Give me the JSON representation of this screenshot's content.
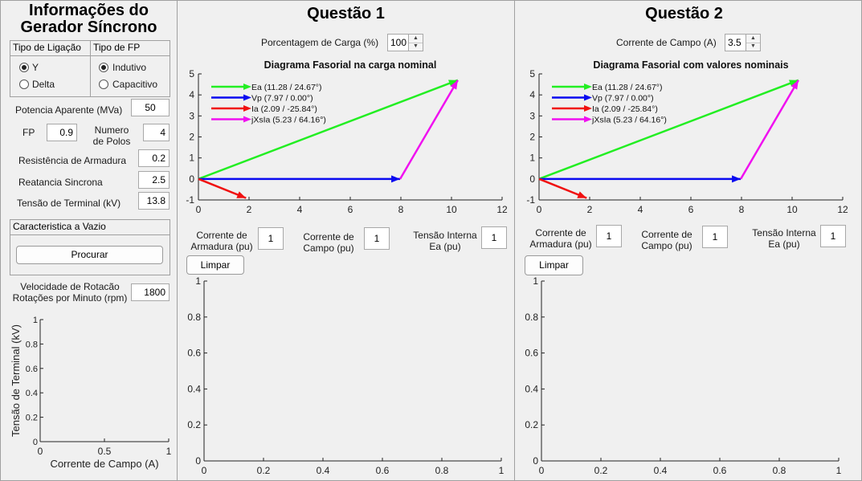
{
  "left": {
    "title_line1": "Informações do",
    "title_line2": "Gerador Síncrono",
    "ligacao": {
      "title": "Tipo de Ligação",
      "options": [
        "Y",
        "Delta"
      ],
      "selected": 0
    },
    "fp_type": {
      "title": "Tipo de FP",
      "options": [
        "Indutivo",
        "Capacitivo"
      ],
      "selected": 0
    },
    "potencia_label": "Potencia Aparente (MVa)",
    "potencia_value": "50",
    "fp_label": "FP",
    "fp_value": "0.9",
    "polos_label_1": "Numero",
    "polos_label_2": "de Polos",
    "polos_value": "4",
    "resistencia_label": "Resistência de Armadura",
    "resistencia_value": "0.2",
    "reatancia_label": "Reatancia Sincrona",
    "reatancia_value": "2.5",
    "tensao_label": "Tensão de Terminal (kV)",
    "tensao_value": "13.8",
    "vazio_title": "Caracteristica a Vazio",
    "procurar_label": "Procurar",
    "velocidade_label_1": "Velocidade de Rotacão",
    "velocidade_label_2": "Rotações por Minuto (rpm)",
    "velocidade_value": "1800",
    "plot": {
      "xlabel": "Corrente de Campo (A)",
      "ylabel": "Tensão de Terminal (kV)",
      "xticks": [
        "0",
        "0.5",
        "1"
      ],
      "yticks": [
        "0",
        "0.2",
        "0.4",
        "0.6",
        "0.8",
        "1"
      ]
    }
  },
  "q1": {
    "title": "Questão 1",
    "input_label": "Porcentagem de Carga (%)",
    "input_value": "100",
    "chart_title": "Diagrama Fasorial na carga nominal",
    "corrente_armadura_1": "Corrente de",
    "corrente_armadura_2": "Armadura (pu)",
    "corrente_armadura_value": "1",
    "corrente_campo_1": "Corrente de",
    "corrente_campo_2": "Campo (pu)",
    "corrente_campo_value": "1",
    "tensao_interna_1": "Tensão Interna",
    "tensao_interna_2": "Ea (pu)",
    "tensao_interna_value": "1",
    "limpar_label": "Limpar",
    "bottom_plot": {
      "xticks": [
        "0",
        "0.2",
        "0.4",
        "0.6",
        "0.8",
        "1"
      ],
      "yticks": [
        "0",
        "0.2",
        "0.4",
        "0.6",
        "0.8",
        "1"
      ]
    }
  },
  "q2": {
    "title": "Questão 2",
    "input_label": "Corrente de Campo (A)",
    "input_value": "3.5",
    "chart_title": "Diagrama Fasorial com valores nominais",
    "corrente_armadura_1": "Corrente de",
    "corrente_armadura_2": "Armadura (pu)",
    "corrente_armadura_value": "1",
    "corrente_campo_1": "Corrente de",
    "corrente_campo_2": "Campo (pu)",
    "corrente_campo_value": "1",
    "tensao_interna_1": "Tensão Interna",
    "tensao_interna_2": "Ea (pu)",
    "tensao_interna_value": "1",
    "limpar_label": "Limpar",
    "bottom_plot": {
      "xticks": [
        "0",
        "0.2",
        "0.4",
        "0.6",
        "0.8",
        "1"
      ],
      "yticks": [
        "0",
        "0.2",
        "0.4",
        "0.6",
        "0.8",
        "1"
      ]
    }
  },
  "chart_data": [
    {
      "type": "line",
      "title": "Diagrama Fasorial na carga nominal",
      "xlim": [
        0,
        12
      ],
      "ylim": [
        -1,
        5
      ],
      "xticks": [
        0,
        2,
        4,
        6,
        8,
        10,
        12
      ],
      "yticks": [
        -1,
        0,
        1,
        2,
        3,
        4,
        5
      ],
      "legend_position": "top-left",
      "series": [
        {
          "name": "Ea (11.28 / 24.67°)",
          "color": "#22ee22",
          "from": [
            0,
            0
          ],
          "to": [
            10.25,
            4.7
          ]
        },
        {
          "name": "Vp (7.97 / 0.00°)",
          "color": "#0a0af0",
          "from": [
            0,
            0
          ],
          "to": [
            7.97,
            0
          ]
        },
        {
          "name": "Ia (2.09 / -25.84°)",
          "color": "#f01010",
          "from": [
            0,
            0
          ],
          "to": [
            1.88,
            -0.91
          ]
        },
        {
          "name": "jXsIa (5.23 / 64.16°)",
          "color": "#f010f0",
          "from": [
            7.97,
            0
          ],
          "to": [
            10.25,
            4.7
          ]
        }
      ]
    },
    {
      "type": "line",
      "title": "Diagrama Fasorial com valores nominais",
      "xlim": [
        0,
        12
      ],
      "ylim": [
        -1,
        5
      ],
      "xticks": [
        0,
        2,
        4,
        6,
        8,
        10,
        12
      ],
      "yticks": [
        -1,
        0,
        1,
        2,
        3,
        4,
        5
      ],
      "legend_position": "top-left",
      "series": [
        {
          "name": "Ea (11.28 / 24.67°)",
          "color": "#22ee22",
          "from": [
            0,
            0
          ],
          "to": [
            10.25,
            4.7
          ]
        },
        {
          "name": "Vp (7.97 / 0.00°)",
          "color": "#0a0af0",
          "from": [
            0,
            0
          ],
          "to": [
            7.97,
            0
          ]
        },
        {
          "name": "Ia (2.09 / -25.84°)",
          "color": "#f01010",
          "from": [
            0,
            0
          ],
          "to": [
            1.88,
            -0.91
          ]
        },
        {
          "name": "jXsIa (5.23 / 64.16°)",
          "color": "#f010f0",
          "from": [
            7.97,
            0
          ],
          "to": [
            10.25,
            4.7
          ]
        }
      ]
    }
  ]
}
